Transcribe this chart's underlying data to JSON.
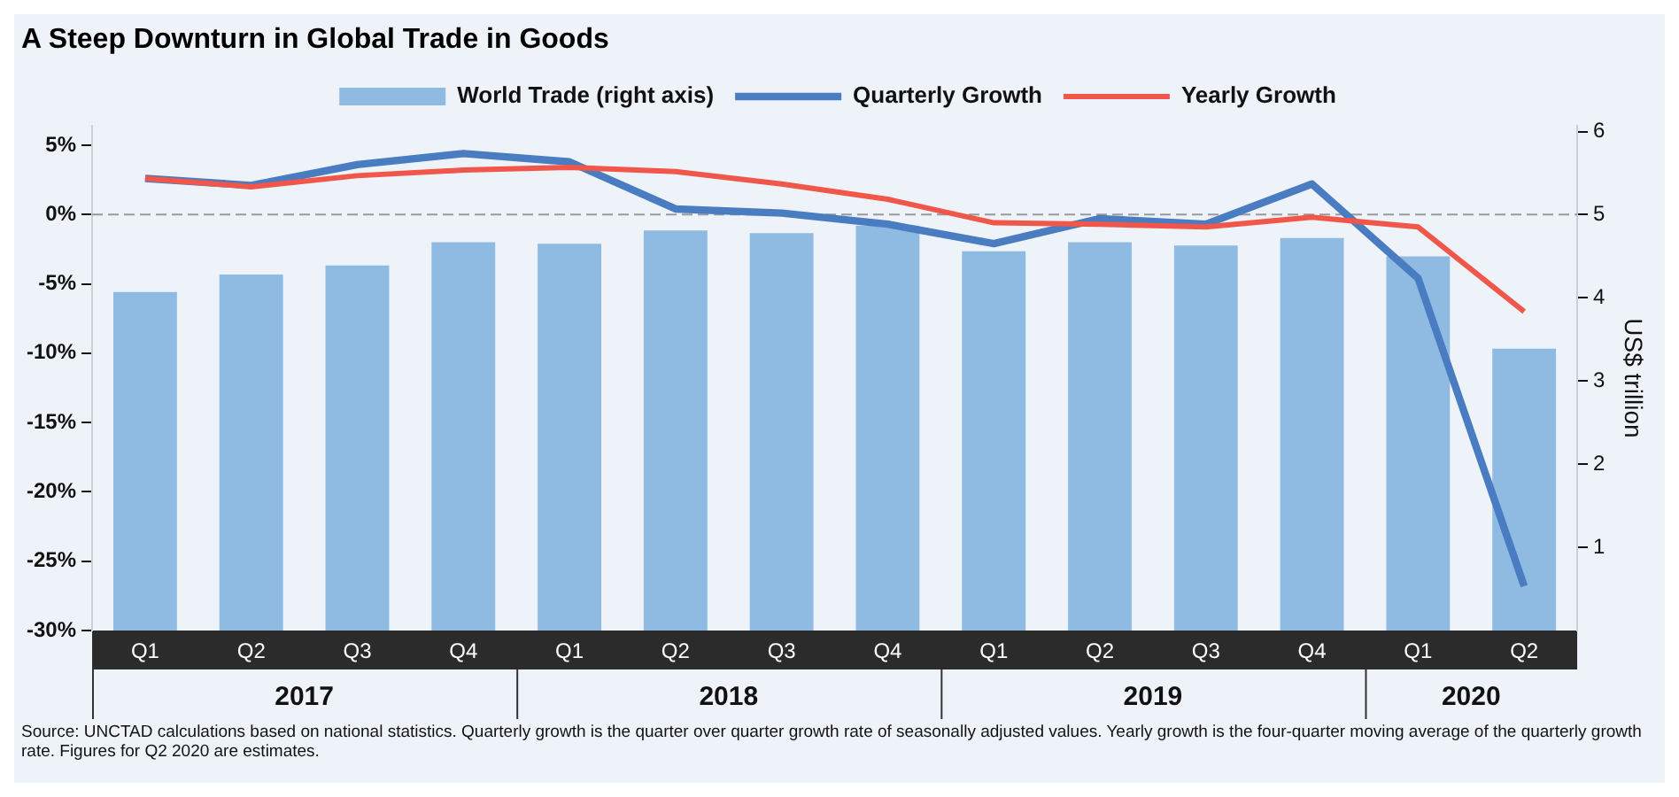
{
  "chart_data": {
    "type": "bar",
    "title": "A Steep Downturn in Global Trade in Goods",
    "y2label": "US$ trillion",
    "categories": [
      "Q1",
      "Q2",
      "Q3",
      "Q4",
      "Q1",
      "Q2",
      "Q3",
      "Q4",
      "Q1",
      "Q2",
      "Q3",
      "Q4",
      "Q1",
      "Q2"
    ],
    "series": [
      {
        "name": "World Trade (right axis)",
        "axis": "y2",
        "color": "#8fbbe3",
        "values": [
          4.07,
          4.28,
          4.39,
          4.67,
          4.65,
          4.81,
          4.78,
          4.87,
          4.56,
          4.67,
          4.63,
          4.72,
          4.5,
          3.39
        ]
      },
      {
        "name": "Quarterly Growth",
        "type": "line",
        "color": "#4a7cc2",
        "values": [
          2.6,
          2.1,
          3.6,
          4.4,
          3.8,
          0.4,
          0.1,
          -0.7,
          -2.1,
          -0.3,
          -0.7,
          2.2,
          -4.6,
          -26.8
        ]
      },
      {
        "name": "Yearly Growth",
        "type": "line",
        "color": "#f0574a",
        "values": [
          2.6,
          2.0,
          2.8,
          3.2,
          3.4,
          3.1,
          2.2,
          1.1,
          -0.6,
          -0.7,
          -0.9,
          -0.2,
          -0.9,
          -7.0
        ]
      }
    ],
    "ylim": [
      -30,
      6.4
    ],
    "yticks": [
      {
        "value": 5,
        "label": "5%"
      },
      {
        "value": 0,
        "label": "0%"
      },
      {
        "value": -5,
        "label": "-5%"
      },
      {
        "value": -10,
        "label": "-10%"
      },
      {
        "value": -15,
        "label": "-15%"
      },
      {
        "value": -20,
        "label": "-20%"
      },
      {
        "value": -25,
        "label": "-25%"
      },
      {
        "value": -30,
        "label": "-30%"
      }
    ],
    "y2lim": [
      0,
      6.07
    ],
    "y2ticks": [
      1,
      2,
      3,
      4,
      5,
      6
    ],
    "ref_lines": [
      {
        "axis": "y",
        "value": 0,
        "color": "#999999",
        "line_style": "dashed"
      }
    ],
    "grid": false,
    "legend": "top",
    "marker": "none",
    "line_style": "solid",
    "annotations": [
      "2017",
      "2018",
      "2019",
      "2020",
      "Source: UNCTAD calculations based on national statistics. Quarterly growth is the quarter over quarter growth rate of seasonally adjusted values. Yearly growth is the four-quarter moving average of the quarterly growth rate. Figures for Q2 2020 are estimates."
    ]
  }
}
